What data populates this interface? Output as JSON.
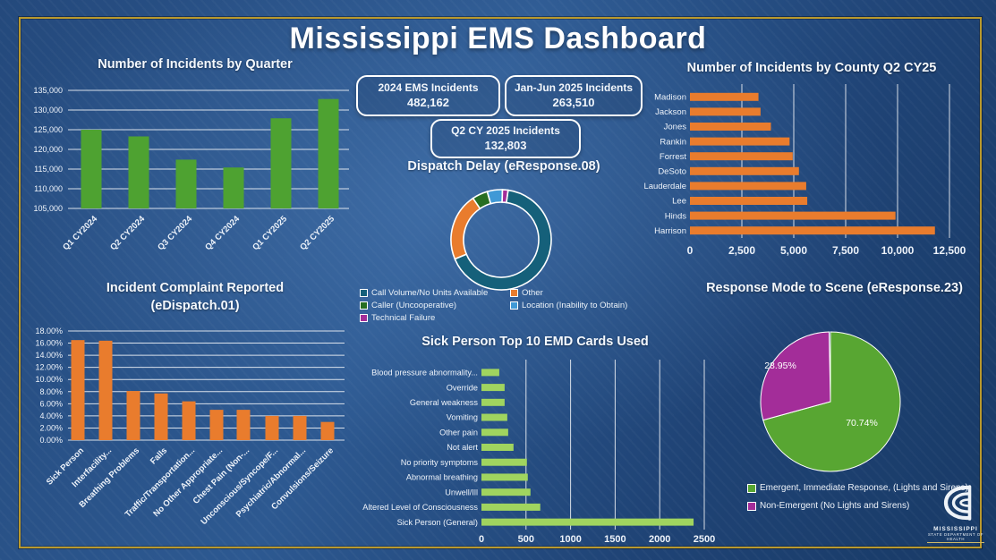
{
  "title": "Mississippi EMS Dashboard",
  "stat_boxes": [
    {
      "label": "2024 EMS Incidents",
      "value": "482,162"
    },
    {
      "label": "Jan-Jun 2025 Incidents",
      "value": "263,510"
    },
    {
      "label": "Q2 CY 2025 Incidents",
      "value": "132,803"
    }
  ],
  "logo": {
    "line1": "Mississippi",
    "line2": "State Department of Health"
  },
  "colors": {
    "background_blue": "#2d5991",
    "frame_gold": "#b9992e",
    "quarter_green": "#4ea231",
    "orange": "#e97c2d",
    "emd_green": "#a0d45f",
    "pie_green": "#58a632",
    "magenta": "#a32d99",
    "teal": "#15607a",
    "caller_green": "#276e22",
    "location_blue": "#4099d6"
  },
  "chart_data": [
    {
      "id": "quarter",
      "type": "bar",
      "title": "Number of Incidents by Quarter",
      "categories": [
        "Q1 CY2024",
        "Q2 CY2024",
        "Q3 CY2024",
        "Q4 CY2024",
        "Q1 CY2025",
        "Q2 CY2025"
      ],
      "values": [
        125000,
        123300,
        117400,
        115400,
        127900,
        132800
      ],
      "ylim": [
        105000,
        135000
      ],
      "ytick_labels": [
        "105,000",
        "110,000",
        "115,000",
        "120,000",
        "125,000",
        "130,000",
        "135,000"
      ],
      "bar_color": "#4ea231",
      "grid": true
    },
    {
      "id": "county",
      "type": "bar-horizontal",
      "title": "Number of Incidents by County Q2 CY25",
      "categories": [
        "Madison",
        "Jackson",
        "Jones",
        "Rankin",
        "Forrest",
        "DeSoto",
        "Lauderdale",
        "Lee",
        "Hinds",
        "Harrison"
      ],
      "values": [
        3300,
        3400,
        3900,
        4800,
        4950,
        5250,
        5600,
        5650,
        9900,
        11800
      ],
      "xlim": [
        0,
        12500
      ],
      "xtick_labels": [
        "0",
        "2,500",
        "5,000",
        "7,500",
        "10,000",
        "12,500"
      ],
      "bar_color": "#e97c2d",
      "grid": true
    },
    {
      "id": "dispatch-delay",
      "type": "pie",
      "subtype": "donut",
      "title": "Dispatch Delay (eResponse.08)",
      "start_angle_deg": 8,
      "legend_position": "below",
      "slices": [
        {
          "label": "Call Volume/No Units Available",
          "pct": 66.5,
          "color": "#15607a"
        },
        {
          "label": "Other",
          "pct": 21.8,
          "color": "#e97c2d"
        },
        {
          "label": "Caller (Uncooperative)",
          "pct": 5.0,
          "color": "#276e22"
        },
        {
          "label": "Location (Inability to Obtain)",
          "pct": 4.9,
          "color": "#4099d6"
        },
        {
          "label": "Technical Failure",
          "pct": 1.8,
          "color": "#a32d99"
        }
      ]
    },
    {
      "id": "complaint",
      "type": "bar",
      "title_line1": "Incident Complaint Reported",
      "title_line2": "(eDispatch.01)",
      "categories": [
        "Sick Person",
        "Interfacility...",
        "Breathing Problems",
        "Falls",
        "Traffic/Transportation...",
        "No Other Appropriate...",
        "Chest Pain (Non-...",
        "Unconscious/Syncope/F...",
        "Psychiatric/Abnormal...",
        "Convulsions/Seizure"
      ],
      "values": [
        16.5,
        16.4,
        8.1,
        7.7,
        6.4,
        5.0,
        5.0,
        4.0,
        4.0,
        3.0
      ],
      "ylim": [
        0,
        18
      ],
      "ytick_labels": [
        "0.00%",
        "2.00%",
        "4.00%",
        "6.00%",
        "8.00%",
        "10.00%",
        "12.00%",
        "14.00%",
        "16.00%",
        "18.00%"
      ],
      "bar_color": "#e97c2d",
      "grid": true
    },
    {
      "id": "emd",
      "type": "bar-horizontal",
      "title": "Sick Person Top 10 EMD Cards Used",
      "categories": [
        "Blood pressure abnormality...",
        "Override",
        "General weakness",
        "Vomiting",
        "Other pain",
        "Not alert",
        "No priority symptoms",
        "Abnormal breathing",
        "Unwell/Ill",
        "Altered Level of Consciousness",
        "Sick Person (General)"
      ],
      "values": [
        200,
        260,
        260,
        290,
        300,
        360,
        510,
        520,
        550,
        660,
        2380
      ],
      "xlim": [
        0,
        2500
      ],
      "xtick_labels": [
        "0",
        "500",
        "1000",
        "1500",
        "2000",
        "2500"
      ],
      "bar_color": "#a0d45f",
      "grid": true
    },
    {
      "id": "response-mode",
      "type": "pie",
      "title": "Response Mode to Scene (eResponse.23)",
      "start_angle_deg": 0,
      "legend_position": "bottom-left",
      "slices": [
        {
          "label": "Emergent, Immediate Response, (Lights and Sirens)",
          "pct": 70.74,
          "pct_label": "70.74%",
          "color": "#58a632"
        },
        {
          "label": "Non-Emergent (No Lights and Sirens)",
          "pct": 28.95,
          "pct_label": "28.95%",
          "color": "#a32d99"
        }
      ]
    }
  ]
}
